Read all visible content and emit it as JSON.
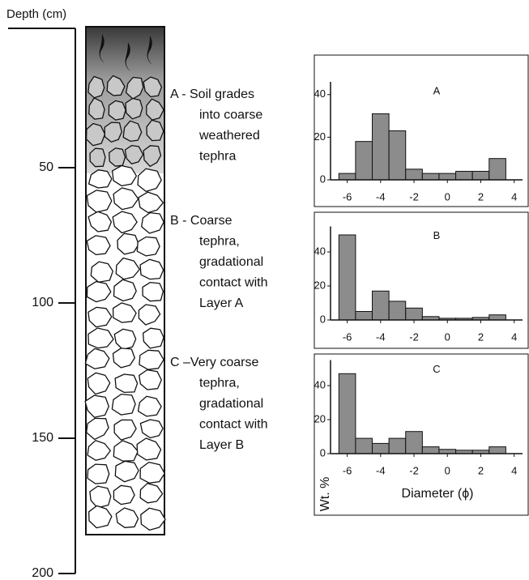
{
  "chart_data": [
    {
      "type": "profile",
      "y_label": "Depth (cm)",
      "ylim": [
        0,
        200
      ],
      "yticks": [
        50,
        100,
        150,
        200
      ],
      "annotations": [
        [
          "A - Soil grades",
          "into coarse",
          "weathered",
          "tephra"
        ],
        [
          "B - Coarse",
          "tephra,",
          "gradational",
          "contact with",
          "Layer A"
        ],
        [
          "C –Very coarse",
          "tephra,",
          "gradational",
          "contact  with",
          "Layer B"
        ]
      ]
    },
    {
      "type": "histogram",
      "title": "A",
      "bins": [
        -6.5,
        -5.5,
        -4.5,
        -3.5,
        -2.5,
        -1.5,
        -0.5,
        0.5,
        1.5,
        2.5,
        3.5
      ],
      "values": [
        3,
        18,
        31,
        23,
        5,
        3,
        3,
        4,
        4,
        10
      ],
      "color": "#8c8c8c",
      "xlim": [
        -7,
        4.5
      ],
      "xticks": [
        -6,
        -4,
        -2,
        0,
        2,
        4
      ],
      "ylim": [
        0,
        46
      ],
      "yticks": [
        0,
        20,
        40
      ]
    },
    {
      "type": "histogram",
      "title": "B",
      "bins": [
        -6.5,
        -5.5,
        -4.5,
        -3.5,
        -2.5,
        -1.5,
        -0.5,
        0.5,
        1.5,
        2.5,
        3.5
      ],
      "values": [
        50,
        5,
        17,
        11,
        7,
        2,
        1,
        1,
        1.5,
        3
      ],
      "color": "#8c8c8c",
      "xlim": [
        -7,
        4.5
      ],
      "xticks": [
        -6,
        -4,
        -2,
        0,
        2,
        4
      ],
      "ylim": [
        0,
        55
      ],
      "yticks": [
        0,
        20,
        40
      ]
    },
    {
      "type": "histogram",
      "title": "C",
      "x_label": "Diameter (ϕ)",
      "y_label": "Wt. %",
      "bins": [
        -6.5,
        -5.5,
        -4.5,
        -3.5,
        -2.5,
        -1.5,
        -0.5,
        0.5,
        1.5,
        2.5,
        3.5
      ],
      "values": [
        47,
        9,
        6,
        9,
        13,
        4,
        2.5,
        2,
        2,
        4
      ],
      "color": "#8c8c8c",
      "xlim": [
        -7,
        4.5
      ],
      "xticks": [
        -6,
        -4,
        -2,
        0,
        2,
        4
      ],
      "ylim": [
        0,
        55
      ],
      "yticks": [
        0,
        20,
        40
      ]
    }
  ]
}
